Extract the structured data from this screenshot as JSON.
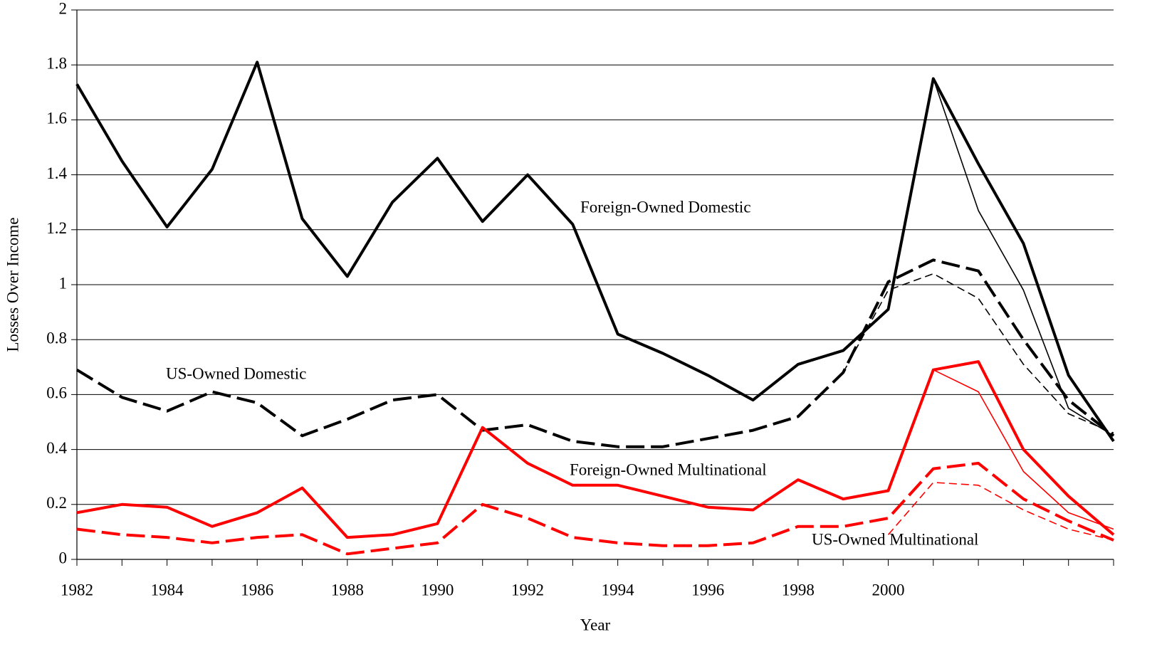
{
  "chart_data": {
    "type": "line",
    "x_label": "Year",
    "y_label": "Losses Over Income",
    "categories": [
      "1982",
      null,
      "1984",
      null,
      "1986",
      null,
      "1988",
      null,
      "1990",
      null,
      "1992",
      null,
      "1994",
      null,
      "1996",
      null,
      "1998",
      null,
      "2000",
      null,
      null,
      null,
      null,
      null
    ],
    "ylim": [
      0,
      2
    ],
    "yticks": [
      0,
      0.2,
      0.4,
      0.6,
      0.8,
      1,
      1.2,
      1.4,
      1.6,
      1.8,
      2
    ],
    "grid": true,
    "series": [
      {
        "name": "Foreign-Owned Domestic",
        "color": "#000000",
        "dash": "solid",
        "weight": "thick",
        "values": [
          1.73,
          1.45,
          1.21,
          1.42,
          1.81,
          1.24,
          1.03,
          1.3,
          1.46,
          1.23,
          1.4,
          1.22,
          0.82,
          0.75,
          0.67,
          0.58,
          0.71,
          0.76,
          0.91,
          1.75,
          1.44,
          1.15,
          0.67,
          0.43
        ]
      },
      {
        "name": "US-Owned Domestic",
        "color": "#000000",
        "dash": "dashed",
        "weight": "thick",
        "values": [
          0.69,
          0.59,
          0.54,
          0.61,
          0.57,
          0.45,
          0.51,
          0.58,
          0.6,
          0.47,
          0.49,
          0.43,
          0.41,
          0.41,
          0.44,
          0.47,
          0.52,
          0.68,
          1.01,
          1.09,
          1.05,
          0.8,
          0.58,
          0.45
        ]
      },
      {
        "name": "Foreign-Owned Multinational",
        "color": "#ff0000",
        "dash": "solid",
        "weight": "thick",
        "values": [
          0.17,
          0.2,
          0.19,
          0.12,
          0.17,
          0.26,
          0.08,
          0.09,
          0.13,
          0.48,
          0.35,
          0.27,
          0.27,
          0.23,
          0.19,
          0.18,
          0.29,
          0.22,
          0.25,
          0.69,
          0.72,
          0.4,
          0.23,
          0.09
        ]
      },
      {
        "name": "US-Owned Multinational",
        "color": "#ff0000",
        "dash": "dashed",
        "weight": "thick",
        "values": [
          0.11,
          0.09,
          0.08,
          0.06,
          0.08,
          0.09,
          0.02,
          0.04,
          0.06,
          0.2,
          0.15,
          0.08,
          0.06,
          0.05,
          0.05,
          0.06,
          0.12,
          0.12,
          0.15,
          0.33,
          0.35,
          0.22,
          0.14,
          0.07
        ]
      },
      {
        "color": "#000000",
        "dash": "solid",
        "weight": "thin",
        "values": [
          null,
          null,
          null,
          null,
          null,
          null,
          null,
          null,
          null,
          null,
          null,
          null,
          null,
          null,
          null,
          null,
          null,
          null,
          null,
          1.75,
          1.27,
          0.98,
          0.55,
          0.45
        ]
      },
      {
        "color": "#000000",
        "dash": "dashed",
        "weight": "thin",
        "values": [
          null,
          null,
          null,
          null,
          null,
          null,
          null,
          null,
          null,
          null,
          null,
          null,
          null,
          null,
          null,
          null,
          null,
          0.68,
          0.98,
          1.04,
          0.95,
          0.71,
          0.53,
          0.46
        ]
      },
      {
        "color": "#ff0000",
        "dash": "solid",
        "weight": "thin",
        "values": [
          null,
          null,
          null,
          null,
          null,
          null,
          null,
          null,
          null,
          null,
          null,
          null,
          null,
          null,
          null,
          null,
          null,
          null,
          null,
          0.69,
          0.61,
          0.32,
          0.17,
          0.11
        ]
      },
      {
        "color": "#ff0000",
        "dash": "dashed",
        "weight": "thin",
        "values": [
          null,
          null,
          null,
          null,
          null,
          null,
          null,
          null,
          null,
          null,
          null,
          null,
          null,
          null,
          null,
          null,
          null,
          null,
          0.09,
          0.28,
          0.27,
          0.18,
          0.11,
          0.07
        ]
      }
    ]
  }
}
